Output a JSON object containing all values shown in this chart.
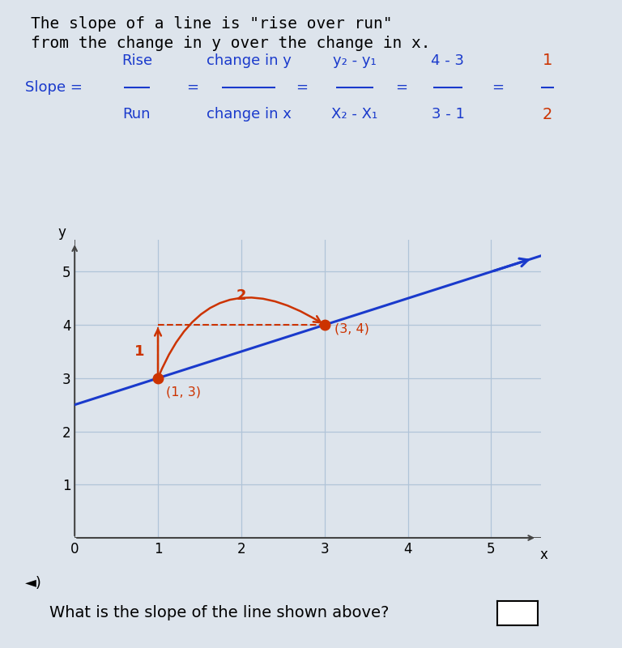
{
  "bg_color": "#dde4ec",
  "title_line1": "The slope of a line is \"rise over run\"",
  "title_line2": "from the change in y over the change in x.",
  "frac1_num": "Rise",
  "frac1_den": "Run",
  "frac2_num": "change in y",
  "frac2_den": "change in x",
  "frac3_num": "y₂ - y₁",
  "frac3_den": "X₂ - X₁",
  "frac4_num": "4 - 3",
  "frac4_den": "3 - 1",
  "frac5_num": "1",
  "frac5_den": "2",
  "formula_color": "#1a3acc",
  "orange_color": "#cc3300",
  "point1": [
    1,
    3
  ],
  "point2": [
    3,
    4
  ],
  "line_color": "#1a3acc",
  "point_color": "#cc3300",
  "grid_color": "#b0c4d8",
  "axis_color": "#444444",
  "question_text": "What is the slope of the line shown above?",
  "xlabel": "x",
  "ylabel": "y",
  "xlim": [
    0,
    5.6
  ],
  "ylim": [
    0,
    5.6
  ],
  "xticks": [
    0,
    1,
    2,
    3,
    4,
    5
  ],
  "yticks": [
    1,
    2,
    3,
    4,
    5
  ]
}
